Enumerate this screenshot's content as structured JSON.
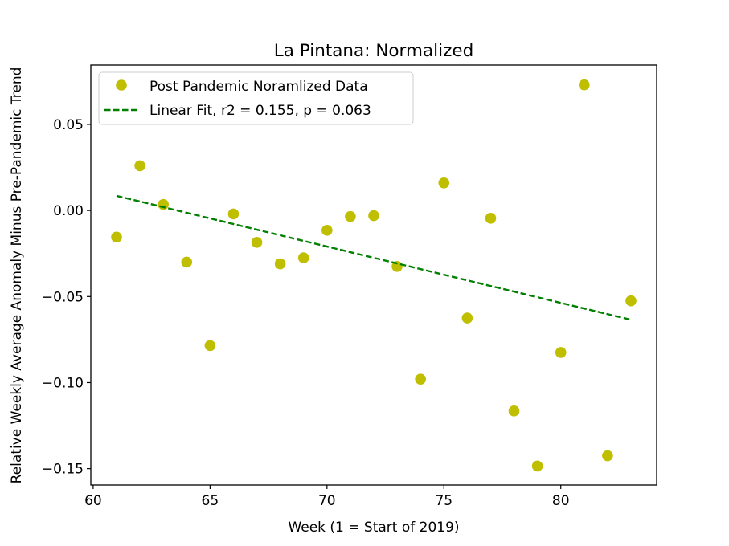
{
  "chart_data": {
    "type": "scatter",
    "title": "La Pintana: Normalized",
    "xlabel": "Week (1 = Start of 2019)",
    "ylabel": "Relative Weekly Average Anomaly Minus Pre-Pandemic Trend",
    "xlim": [
      59.9,
      84.1
    ],
    "ylim": [
      -0.1595,
      0.0845
    ],
    "x_ticks": [
      60,
      65,
      70,
      75,
      80
    ],
    "x_tick_labels": [
      "60",
      "65",
      "70",
      "75",
      "80"
    ],
    "y_ticks": [
      0.05,
      0.0,
      -0.05,
      -0.1,
      -0.15
    ],
    "y_tick_labels": [
      "0.05",
      "0.00",
      "−0.05",
      "−0.10",
      "−0.15"
    ],
    "grid": false,
    "legend_position": "top-left",
    "series": [
      {
        "name": "Post Pandemic Noramlized Data",
        "kind": "scatter",
        "color": "#bfbf00",
        "x": [
          61,
          62,
          63,
          64,
          65,
          66,
          67,
          68,
          69,
          70,
          71,
          72,
          73,
          74,
          75,
          76,
          77,
          78,
          79,
          80,
          81,
          82,
          83
        ],
        "y": [
          -0.0155,
          0.026,
          0.0035,
          -0.03,
          -0.0785,
          -0.002,
          -0.0185,
          -0.031,
          -0.0275,
          -0.0115,
          -0.0035,
          -0.003,
          -0.0325,
          -0.098,
          0.016,
          -0.0625,
          -0.0045,
          -0.1165,
          -0.1485,
          -0.0825,
          0.073,
          -0.1425,
          -0.0525
        ]
      },
      {
        "name": "Linear Fit, r2 = 0.155, p = 0.063",
        "kind": "line",
        "style": "dashed",
        "color": "#008000",
        "x": [
          61,
          83
        ],
        "y": [
          0.0085,
          -0.0635
        ]
      }
    ]
  }
}
